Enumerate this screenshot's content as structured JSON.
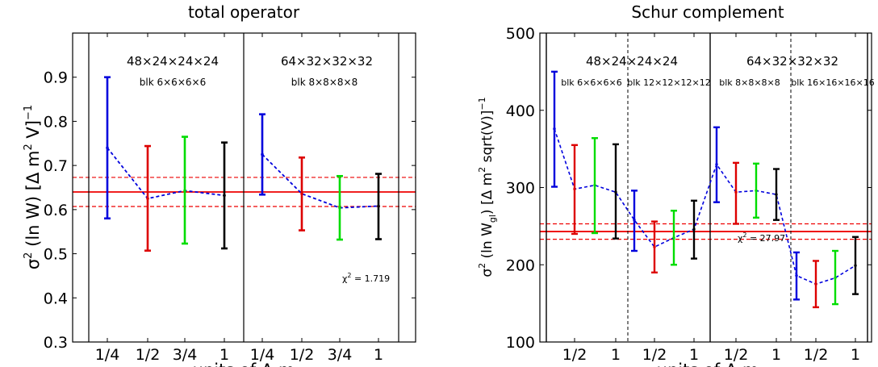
{
  "chart_data": [
    {
      "type": "scatter",
      "title": "total operator",
      "xlabel": "units of Δ m",
      "ylabel_main": "σ",
      "ylabel_sup": "2",
      "ylabel_rest": " (ln W) [Δ m",
      "ylabel_sup2": "2",
      "ylabel_rest2": " V]",
      "ylabel_sup3": "−1",
      "ylim": [
        0.3,
        1.0
      ],
      "yticks": [
        "0.3",
        "0.4",
        "0.5",
        "0.6",
        "0.7",
        "0.8",
        "0.9"
      ],
      "ytick_values": [
        0.3,
        0.4,
        0.5,
        0.6,
        0.7,
        0.8,
        0.9
      ],
      "xticks": [
        "1/4",
        "1/2",
        "3/4",
        "1",
        "1/4",
        "1/2",
        "3/4",
        "1"
      ],
      "groups": [
        {
          "label": "48×24×24×24",
          "blk": "blk 6×6×6×6"
        },
        {
          "label": "64×32×32×32",
          "blk": "blk 8×8×8×8"
        }
      ],
      "points": [
        {
          "x": "1/4",
          "y": 0.74,
          "low": 0.58,
          "high": 0.9,
          "color": "#0000dd"
        },
        {
          "x": "1/2",
          "y": 0.625,
          "low": 0.507,
          "high": 0.744,
          "color": "#dd0000"
        },
        {
          "x": "3/4",
          "y": 0.643,
          "low": 0.523,
          "high": 0.765,
          "color": "#00dd00"
        },
        {
          "x": "1",
          "y": 0.632,
          "low": 0.512,
          "high": 0.752,
          "color": "#000000"
        },
        {
          "x": "1/4",
          "y": 0.725,
          "low": 0.634,
          "high": 0.816,
          "color": "#0000dd"
        },
        {
          "x": "1/2",
          "y": 0.636,
          "low": 0.553,
          "high": 0.718,
          "color": "#dd0000"
        },
        {
          "x": "3/4",
          "y": 0.604,
          "low": 0.532,
          "high": 0.676,
          "color": "#00dd00"
        },
        {
          "x": "1",
          "y": 0.608,
          "low": 0.533,
          "high": 0.681,
          "color": "#000000"
        }
      ],
      "fit": {
        "value": 0.64,
        "low": 0.607,
        "high": 0.673
      },
      "chi2_label": "χ",
      "chi2_sup": "2",
      "chi2_value": " = 1.719",
      "grid": false
    },
    {
      "type": "scatter",
      "title": "Schur complement",
      "xlabel": "units of Δ m",
      "ylabel_main": "σ",
      "ylabel_sup": "2",
      "ylabel_rest": " (ln W",
      "ylabel_sub": "gl",
      "ylabel_rest2": ") [Δ m",
      "ylabel_sup2": "2",
      "ylabel_rest3": " sqrt(V)]",
      "ylabel_sup3": "−1",
      "ylim": [
        100,
        500
      ],
      "yticks": [
        "100",
        "200",
        "300",
        "400",
        "500"
      ],
      "ytick_values": [
        100,
        200,
        300,
        400,
        500
      ],
      "xticks": [
        "1/2",
        "1",
        "1/2",
        "1",
        "1/2",
        "1",
        "1/2",
        "1"
      ],
      "groups": [
        {
          "label": "48×24×24×24",
          "blk_a": "blk 6×6×6×6",
          "blk_b": "blk 12×12×12×12"
        },
        {
          "label": "64×32×32×32",
          "blk_a": "blk 8×8×8×8",
          "blk_b": "blk 16×16×16×16"
        }
      ],
      "points": [
        {
          "y": 376,
          "low": 301,
          "high": 450,
          "color": "#0000dd"
        },
        {
          "y": 298,
          "low": 240,
          "high": 355,
          "color": "#dd0000"
        },
        {
          "y": 303,
          "low": 241,
          "high": 364,
          "color": "#00dd00"
        },
        {
          "y": 294,
          "low": 234,
          "high": 356,
          "color": "#000000"
        },
        {
          "y": 258,
          "low": 218,
          "high": 296,
          "color": "#0000dd"
        },
        {
          "y": 223,
          "low": 190,
          "high": 256,
          "color": "#dd0000"
        },
        {
          "y": 235,
          "low": 200,
          "high": 270,
          "color": "#00dd00"
        },
        {
          "y": 246,
          "low": 208,
          "high": 283,
          "color": "#000000"
        },
        {
          "y": 330,
          "low": 281,
          "high": 378,
          "color": "#0000dd"
        },
        {
          "y": 294,
          "low": 253,
          "high": 332,
          "color": "#dd0000"
        },
        {
          "y": 296,
          "low": 261,
          "high": 331,
          "color": "#00dd00"
        },
        {
          "y": 291,
          "low": 258,
          "high": 324,
          "color": "#000000"
        },
        {
          "y": 186,
          "low": 155,
          "high": 216,
          "color": "#0000dd"
        },
        {
          "y": 175,
          "low": 145,
          "high": 205,
          "color": "#dd0000"
        },
        {
          "y": 183,
          "low": 149,
          "high": 218,
          "color": "#00dd00"
        },
        {
          "y": 199,
          "low": 162,
          "high": 236,
          "color": "#000000"
        }
      ],
      "fit": {
        "value": 243,
        "low": 233,
        "high": 253
      },
      "chi2_label": "χ",
      "chi2_sup": "2",
      "chi2_value": " = 27.97",
      "grid": false
    }
  ]
}
